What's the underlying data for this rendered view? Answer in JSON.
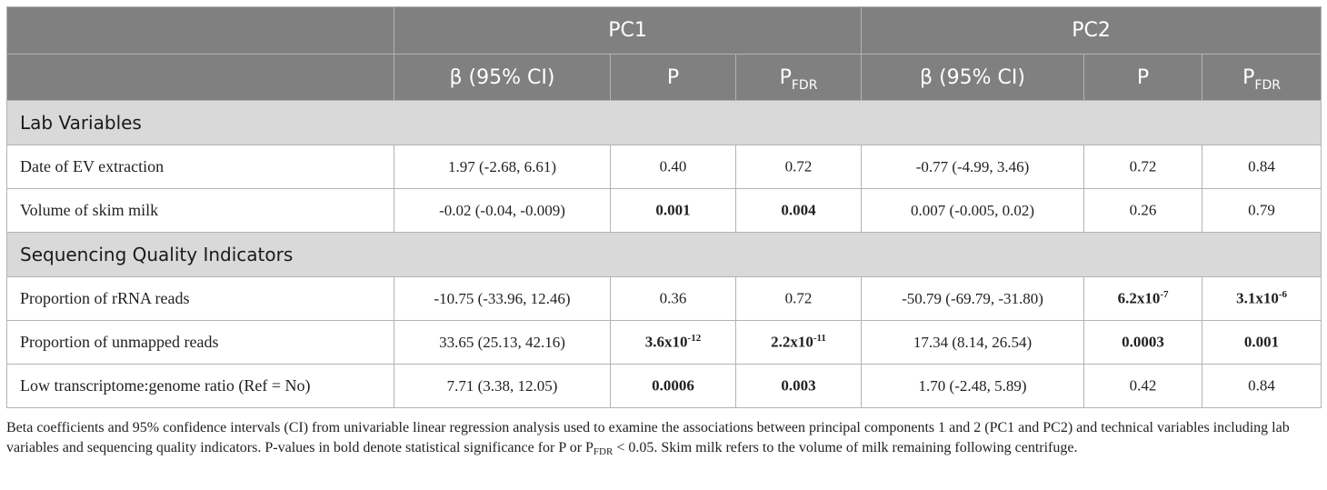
{
  "header": {
    "group1": "PC1",
    "group2": "PC2",
    "beta_label": "β (95% CI)",
    "p_label": "P",
    "pfdr_main": "P",
    "pfdr_sub": "FDR"
  },
  "sections": [
    {
      "title": "Lab Variables",
      "rows": [
        {
          "label": "Date of EV extraction",
          "pc1_beta": "1.97 (-2.68, 6.61)",
          "pc1_p": "0.40",
          "pc1_p_exp": "",
          "pc1_fdr": "0.72",
          "pc1_fdr_exp": "",
          "pc2_beta": "-0.77 (-4.99, 3.46)",
          "pc2_p": "0.72",
          "pc2_p_exp": "",
          "pc2_fdr": "0.84",
          "pc2_fdr_exp": ""
        },
        {
          "label": "Volume of skim milk",
          "pc1_beta": "-0.02 (-0.04, -0.009)",
          "pc1_p": "0.001",
          "pc1_p_exp": "",
          "pc1_fdr": "0.004",
          "pc1_fdr_exp": "",
          "pc2_beta": "0.007 (-0.005, 0.02)",
          "pc2_p": "0.26",
          "pc2_p_exp": "",
          "pc2_fdr": "0.79",
          "pc2_fdr_exp": ""
        }
      ]
    },
    {
      "title": "Sequencing Quality Indicators",
      "rows": [
        {
          "label": "Proportion of rRNA reads",
          "pc1_beta": "-10.75 (-33.96, 12.46)",
          "pc1_p": "0.36",
          "pc1_p_exp": "",
          "pc1_fdr": "0.72",
          "pc1_fdr_exp": "",
          "pc2_beta": "-50.79 (-69.79, -31.80)",
          "pc2_p": "6.2x10",
          "pc2_p_exp": "-7",
          "pc2_fdr": "3.1x10",
          "pc2_fdr_exp": "-6"
        },
        {
          "label": "Proportion of unmapped reads",
          "pc1_beta": "33.65 (25.13, 42.16)",
          "pc1_p": "3.6x10",
          "pc1_p_exp": "-12",
          "pc1_fdr": "2.2x10",
          "pc1_fdr_exp": "-11",
          "pc2_beta": "17.34 (8.14, 26.54)",
          "pc2_p": "0.0003",
          "pc2_p_exp": "",
          "pc2_fdr": "0.001",
          "pc2_fdr_exp": ""
        },
        {
          "label": "Low transcriptome:genome ratio (Ref = No)",
          "pc1_beta": "7.71 (3.38, 12.05)",
          "pc1_p": "0.0006",
          "pc1_p_exp": "",
          "pc1_fdr": "0.003",
          "pc1_fdr_exp": "",
          "pc2_beta": "1.70 (-2.48, 5.89)",
          "pc2_p": "0.42",
          "pc2_p_exp": "",
          "pc2_fdr": "0.84",
          "pc2_fdr_exp": ""
        }
      ]
    }
  ],
  "caption": {
    "part1": "Beta coefficients and 95% confidence intervals (CI) from univariable linear regression analysis used to examine the associations between principal components 1 and 2 (PC1 and PC2) and technical variables including lab variables and sequencing quality indicators. P-values in bold denote statistical significance for P or P",
    "sub": "FDR",
    "part2": " < 0.05. Skim milk refers to the volume of milk remaining following centrifuge."
  }
}
